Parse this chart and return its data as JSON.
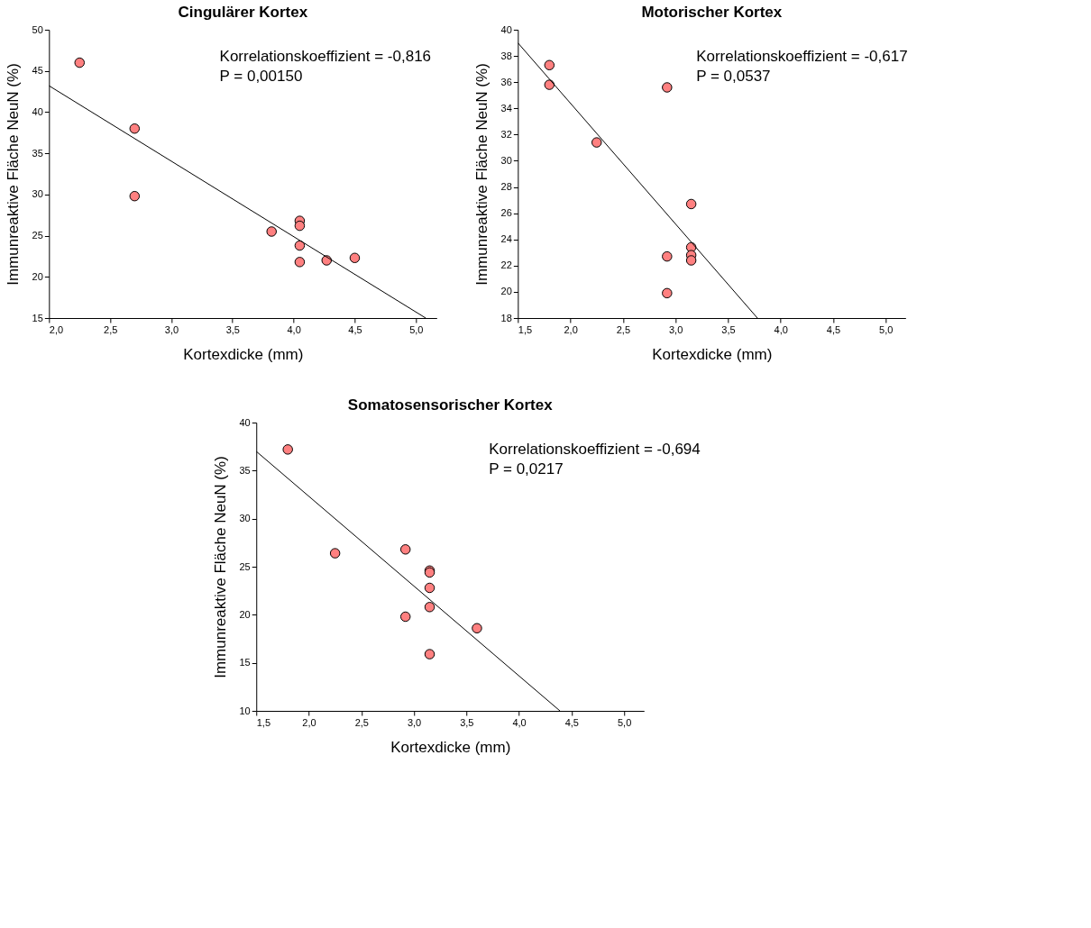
{
  "chart_data": [
    {
      "type": "scatter",
      "title": "Cingulärer Kortex",
      "xlabel": "Kortexdicke (mm)",
      "ylabel": "Immunreaktive Fläche NeuN (%)",
      "grid": false,
      "xlim": [
        2.0,
        5.17
      ],
      "xticks": [
        {
          "value": 2.0,
          "label": "2,0"
        },
        {
          "value": 2.5,
          "label": "2,5"
        },
        {
          "value": 3.0,
          "label": "3,0"
        },
        {
          "value": 3.5,
          "label": "3,5"
        },
        {
          "value": 4.0,
          "label": "4,0"
        },
        {
          "value": 4.5,
          "label": "4,5"
        },
        {
          "value": 5.0,
          "label": "5,0"
        }
      ],
      "ylim": [
        15,
        50
      ],
      "yticks": [
        15,
        20,
        25,
        30,
        35,
        40,
        45,
        50
      ],
      "annotations": [
        "Korrelationskoeffizient = -0,816",
        "P = 0,00150"
      ],
      "series": [
        {
          "color": "#ff8080",
          "marker": "circle",
          "x": [
            2.25,
            2.7,
            2.7,
            3.82,
            4.05,
            4.05,
            4.05,
            4.05,
            4.27,
            4.5
          ],
          "values": [
            46.0,
            38.0,
            29.8,
            25.5,
            26.8,
            26.2,
            23.8,
            21.8,
            22.0,
            22.3
          ]
        },
        {
          "type": "line",
          "marker": "none",
          "color": "#000000",
          "x": [
            2.0,
            5.08
          ],
          "values": [
            43.2,
            15.0
          ]
        }
      ]
    },
    {
      "type": "scatter",
      "title": "Motorischer Kortex",
      "xlabel": "Kortexdicke (mm)",
      "ylabel": "Immunreaktive Fläche NeuN (%)",
      "grid": false,
      "xlim": [
        1.5,
        5.19
      ],
      "xticks": [
        {
          "value": 1.5,
          "label": "1,5"
        },
        {
          "value": 2.0,
          "label": "2,0"
        },
        {
          "value": 2.5,
          "label": "2,5"
        },
        {
          "value": 3.0,
          "label": "3,0"
        },
        {
          "value": 3.5,
          "label": "3,5"
        },
        {
          "value": 4.0,
          "label": "4,0"
        },
        {
          "value": 4.5,
          "label": "4,5"
        },
        {
          "value": 5.0,
          "label": "5,0"
        }
      ],
      "ylim": [
        18,
        40
      ],
      "yticks": [
        18,
        20,
        22,
        24,
        26,
        28,
        30,
        32,
        34,
        36,
        38,
        40
      ],
      "annotations": [
        "Korrelationskoeffizient = -0,617",
        "P = 0,0537"
      ],
      "series": [
        {
          "color": "#ff8080",
          "marker": "circle",
          "x": [
            1.8,
            1.8,
            2.25,
            2.92,
            2.92,
            2.92,
            3.15,
            3.15,
            3.15,
            3.15
          ],
          "values": [
            37.3,
            35.8,
            31.4,
            35.6,
            22.7,
            19.9,
            26.7,
            23.4,
            22.8,
            22.4
          ]
        },
        {
          "type": "line",
          "marker": "none",
          "color": "#000000",
          "x": [
            1.5,
            3.78
          ],
          "values": [
            39.0,
            18.0
          ]
        }
      ]
    },
    {
      "type": "scatter",
      "title": "Somatosensorischer Kortex",
      "xlabel": "Kortexdicke (mm)",
      "ylabel": "Immunreaktive Fläche NeuN (%)",
      "grid": false,
      "xlim": [
        1.5,
        5.19
      ],
      "xticks": [
        {
          "value": 1.5,
          "label": "1,5"
        },
        {
          "value": 2.0,
          "label": "2,0"
        },
        {
          "value": 2.5,
          "label": "2,5"
        },
        {
          "value": 3.0,
          "label": "3,0"
        },
        {
          "value": 3.5,
          "label": "3,5"
        },
        {
          "value": 4.0,
          "label": "4,0"
        },
        {
          "value": 4.5,
          "label": "4,5"
        },
        {
          "value": 5.0,
          "label": "5,0"
        }
      ],
      "ylim": [
        10,
        40
      ],
      "yticks": [
        10,
        15,
        20,
        25,
        30,
        35,
        40
      ],
      "annotations": [
        "Korrelationskoeffizient = -0,694",
        "P = 0,0217"
      ],
      "series": [
        {
          "color": "#ff8080",
          "marker": "circle",
          "x": [
            1.8,
            2.25,
            2.92,
            2.92,
            3.15,
            3.15,
            3.15,
            3.15,
            3.6,
            3.15
          ],
          "values": [
            37.2,
            26.4,
            26.8,
            19.8,
            24.6,
            24.4,
            22.8,
            20.8,
            18.6,
            15.9
          ]
        },
        {
          "type": "line",
          "marker": "none",
          "color": "#000000",
          "x": [
            1.5,
            4.39
          ],
          "values": [
            37.0,
            10.0
          ]
        }
      ]
    }
  ]
}
